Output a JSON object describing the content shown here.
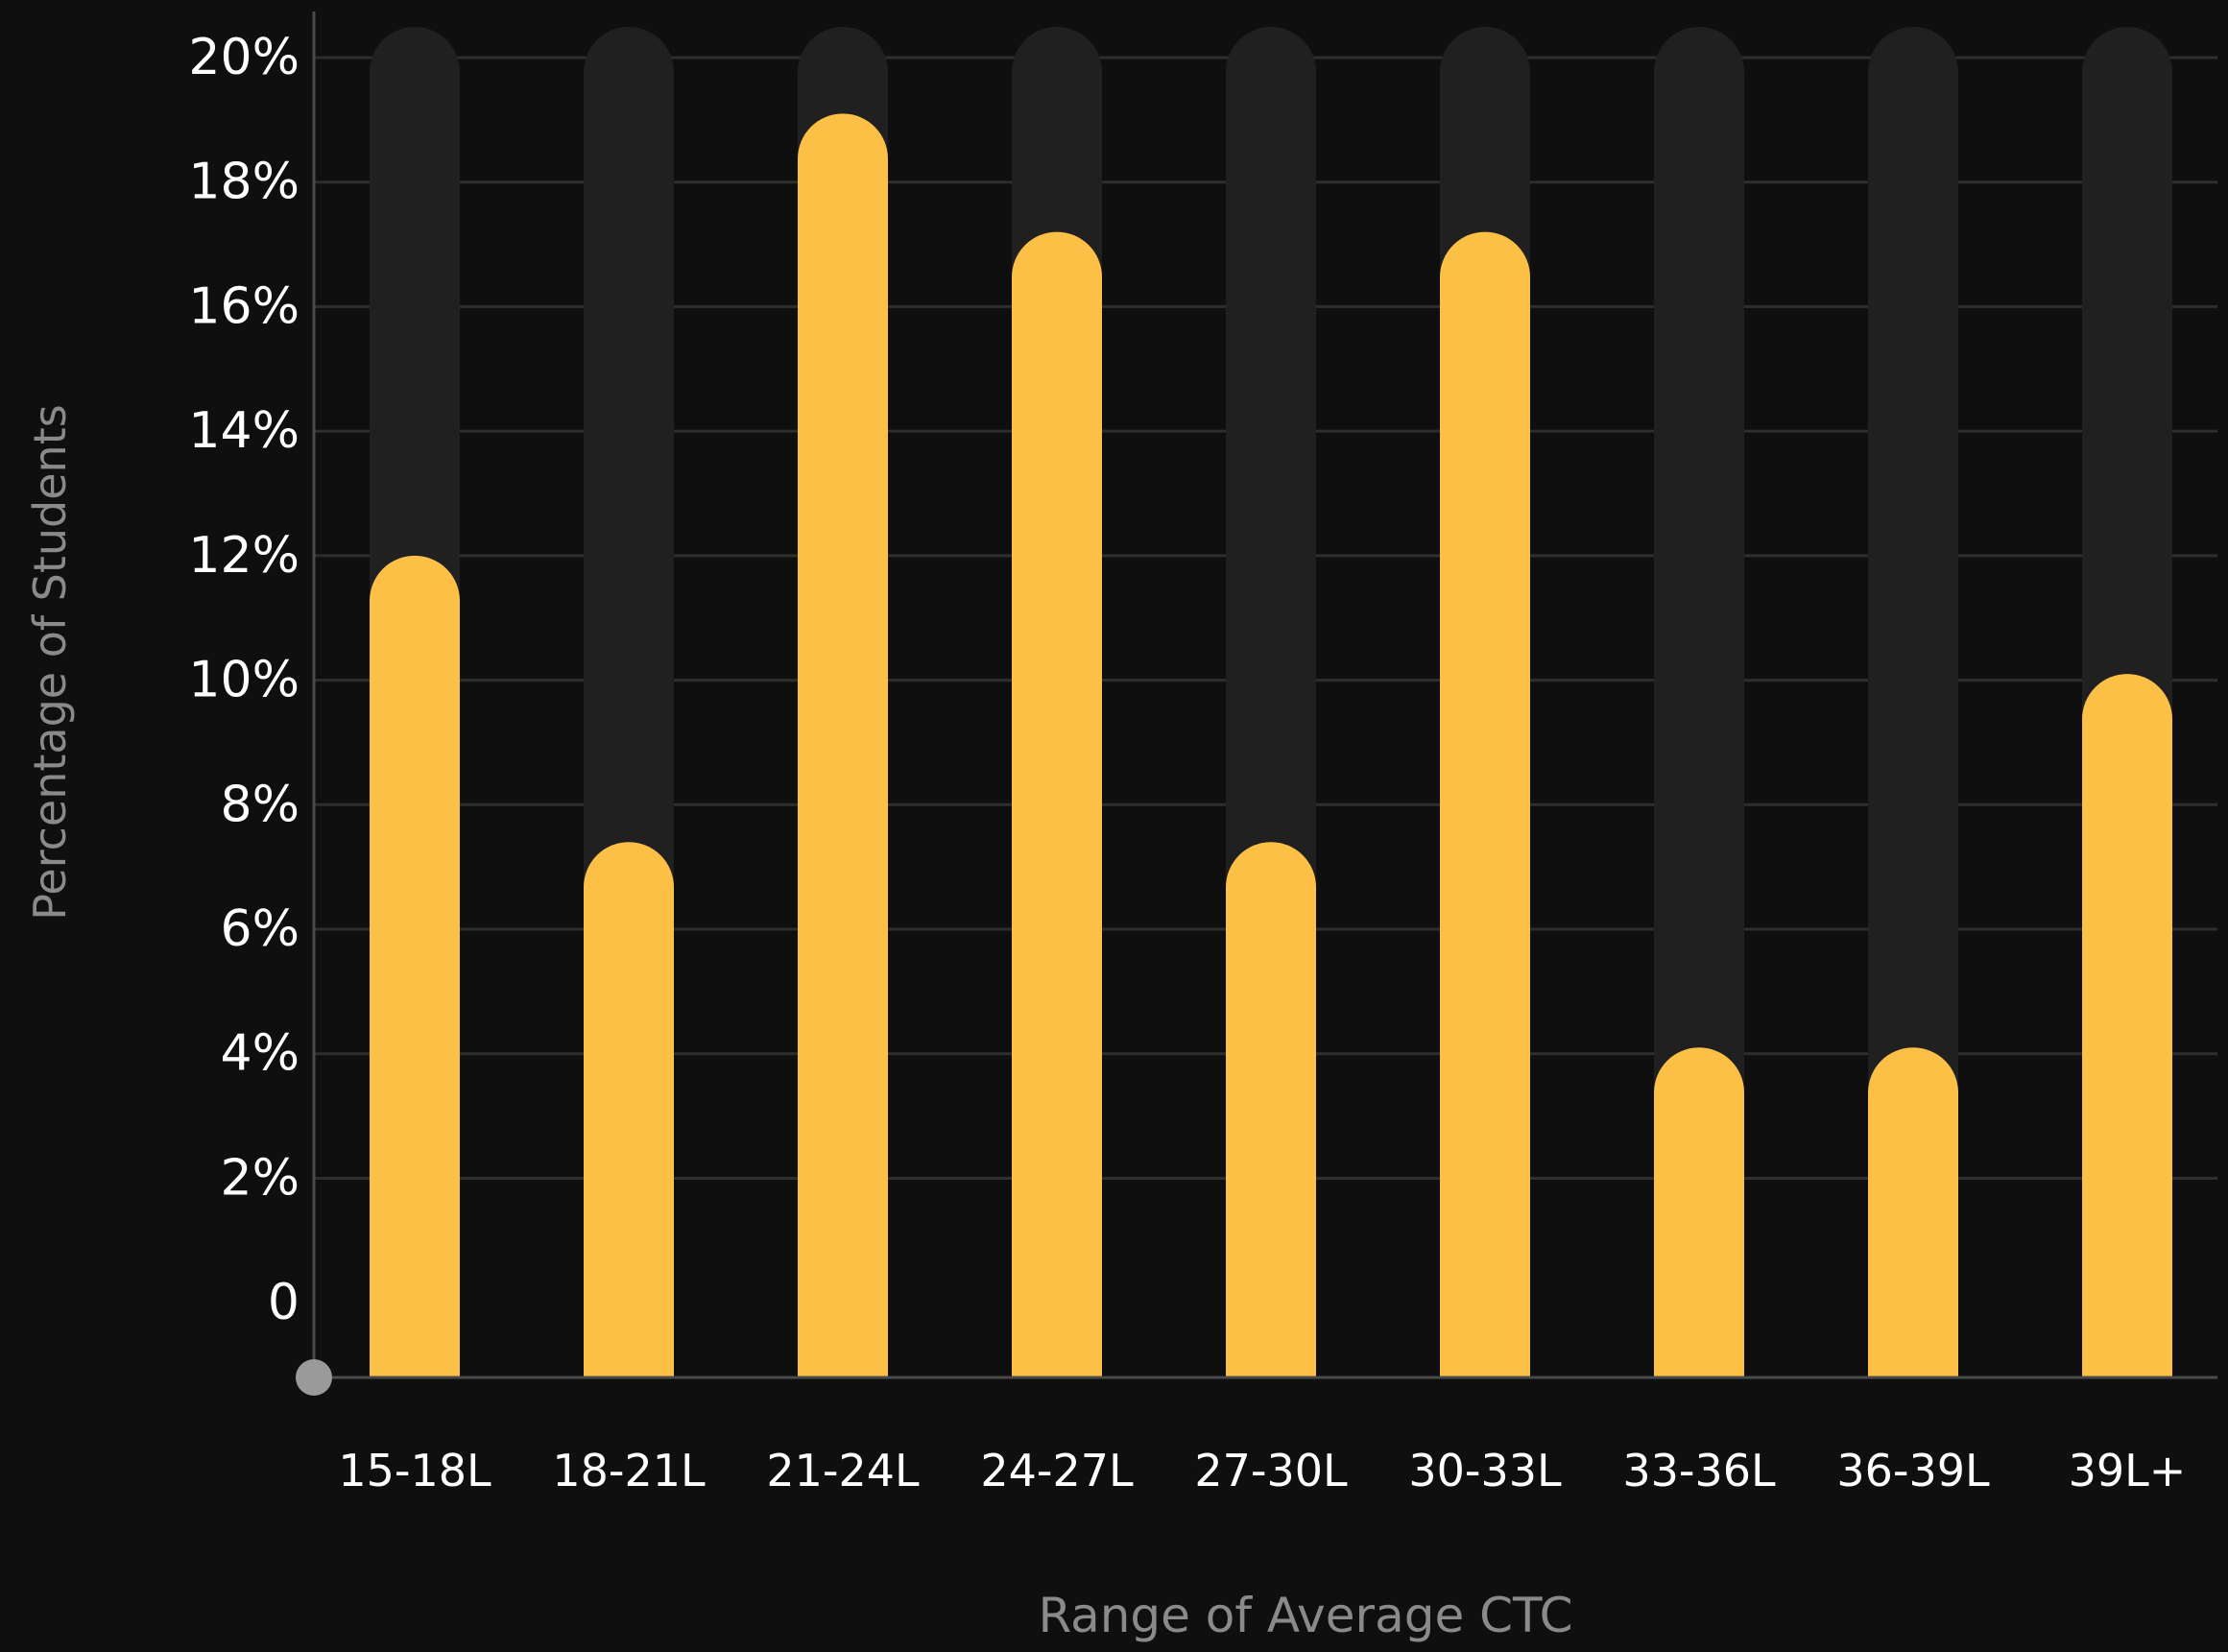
{
  "chart_data": {
    "type": "bar",
    "xlabel": "Range of Average CTC",
    "ylabel": "Percentage of Students",
    "categories": [
      "15-18L",
      "18-21L",
      "21-24L",
      "24-27L",
      "27-30L",
      "30-33L",
      "33-36L",
      "36-39L",
      "39L+"
    ],
    "values": [
      12,
      7.4,
      19.1,
      17.2,
      7.4,
      17.2,
      4.1,
      4.1,
      10.1
    ],
    "ylim": [
      -1.2,
      20
    ],
    "yticks": [
      {
        "value": 0,
        "label": "0"
      },
      {
        "value": 2,
        "label": "2%"
      },
      {
        "value": 4,
        "label": "4%"
      },
      {
        "value": 6,
        "label": "6%"
      },
      {
        "value": 8,
        "label": "8%"
      },
      {
        "value": 10,
        "label": "10%"
      },
      {
        "value": 12,
        "label": "12%"
      },
      {
        "value": 14,
        "label": "14%"
      },
      {
        "value": 16,
        "label": "16%"
      },
      {
        "value": 18,
        "label": "18%"
      },
      {
        "value": 20,
        "label": "20%"
      }
    ],
    "grid": true,
    "colors": {
      "background": "#0f0f0f",
      "bar": "#fdc047",
      "track": "#202020",
      "grid": "#2e2e2e",
      "axis": "#4a4a4a",
      "tick_text": "#ffffff",
      "axis_title": "#8a8a8a",
      "origin_dot": "#9a9a9a"
    }
  }
}
